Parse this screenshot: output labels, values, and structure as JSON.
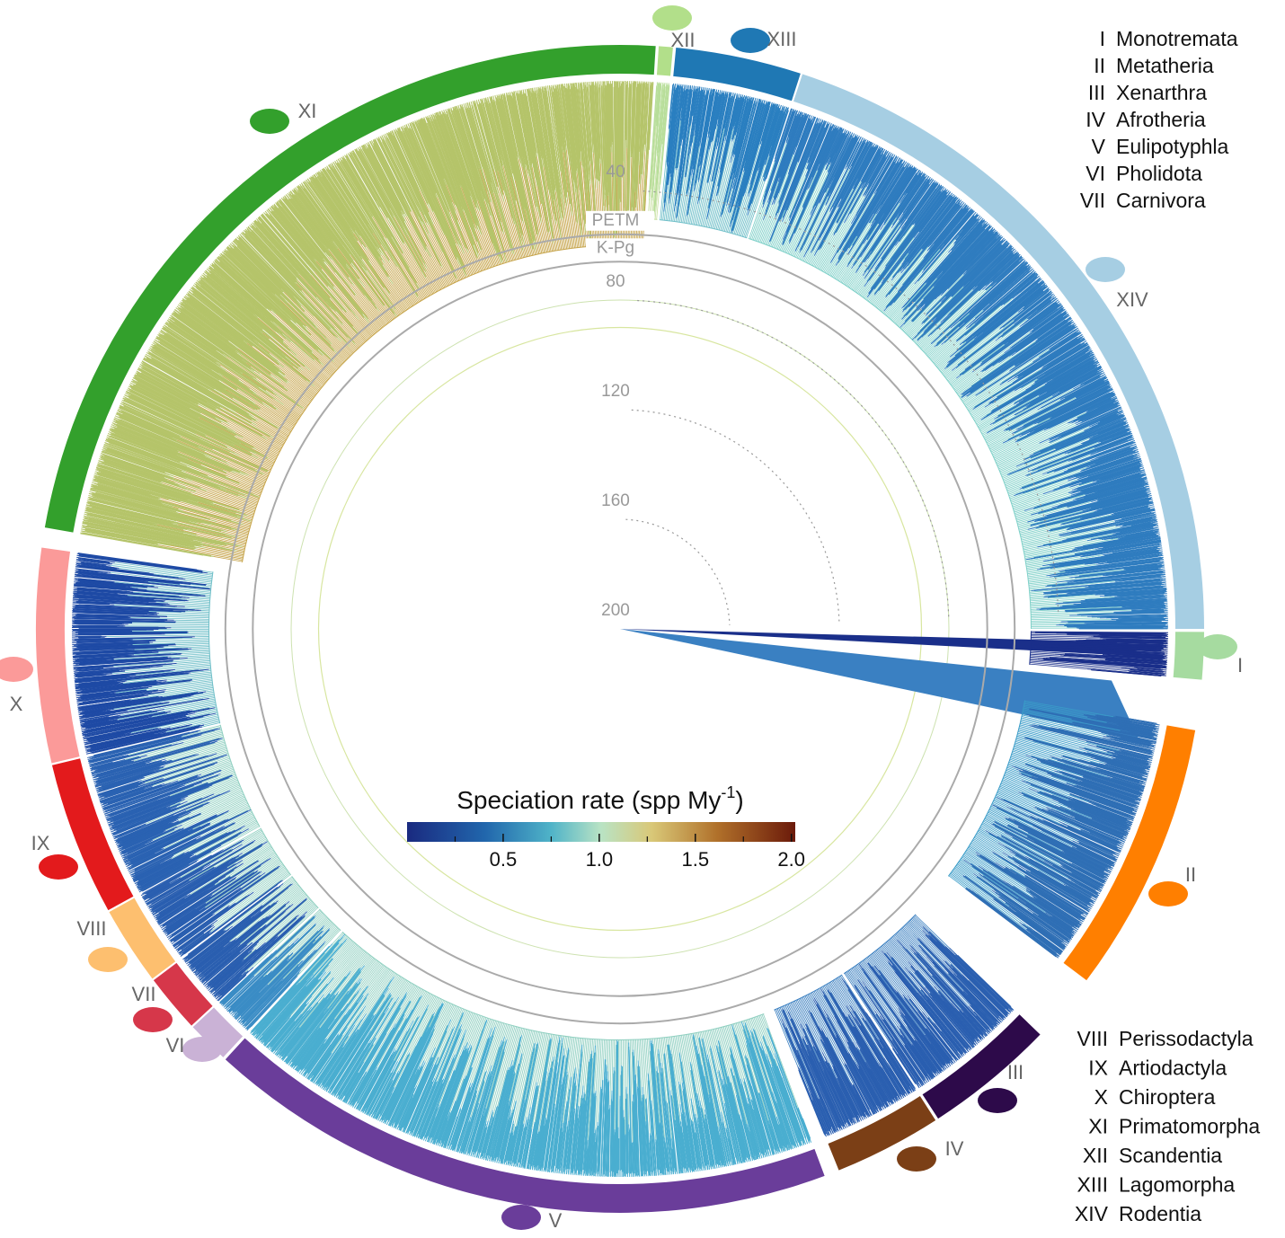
{
  "clades": [
    {
      "numeral": "I",
      "name": "Monotremata",
      "color": "#a6dba0"
    },
    {
      "numeral": "II",
      "name": "Metatheria",
      "color": "#ff7f00"
    },
    {
      "numeral": "III",
      "name": "Xenarthra",
      "color": "#2d0a4a"
    },
    {
      "numeral": "IV",
      "name": "Afrotheria",
      "color": "#7b3f16"
    },
    {
      "numeral": "V",
      "name": "Eulipotyphla",
      "color": "#6a3d9a"
    },
    {
      "numeral": "VI",
      "name": "Pholidota",
      "color": "#cab2d6"
    },
    {
      "numeral": "VII",
      "name": "Carnivora",
      "color": "#d6374a"
    },
    {
      "numeral": "VIII",
      "name": "Perissodactyla",
      "color": "#fdbf6f"
    },
    {
      "numeral": "IX",
      "name": "Artiodactyla",
      "color": "#e31a1c"
    },
    {
      "numeral": "X",
      "name": "Chiroptera",
      "color": "#fb9a99"
    },
    {
      "numeral": "XI",
      "name": "Primatomorpha",
      "color": "#33a02c"
    },
    {
      "numeral": "XII",
      "name": "Scandentia",
      "color": "#b2df8a"
    },
    {
      "numeral": "XIII",
      "name": "Lagomorpha",
      "color": "#1f78b4"
    },
    {
      "numeral": "XIV",
      "name": "Rodentia",
      "color": "#a6cee3"
    }
  ],
  "time_axis": {
    "ticks": [
      40,
      80,
      120,
      160,
      200
    ],
    "events": [
      {
        "label": "PETM",
        "value": 56
      },
      {
        "label": "K-Pg",
        "value": 66
      }
    ]
  },
  "colorbar": {
    "title": "Speciation rate (spp My",
    "title_sup": "-1",
    "title_end": ")",
    "range": [
      0,
      2.02
    ],
    "ticks": [
      0.5,
      {
        "value": 1,
        "label": "1.0"
      },
      1.5,
      {
        "value": 2,
        "label": "2.0"
      }
    ],
    "minor_ticks": [
      0.25,
      0.75,
      1.25,
      1.75
    ]
  }
}
